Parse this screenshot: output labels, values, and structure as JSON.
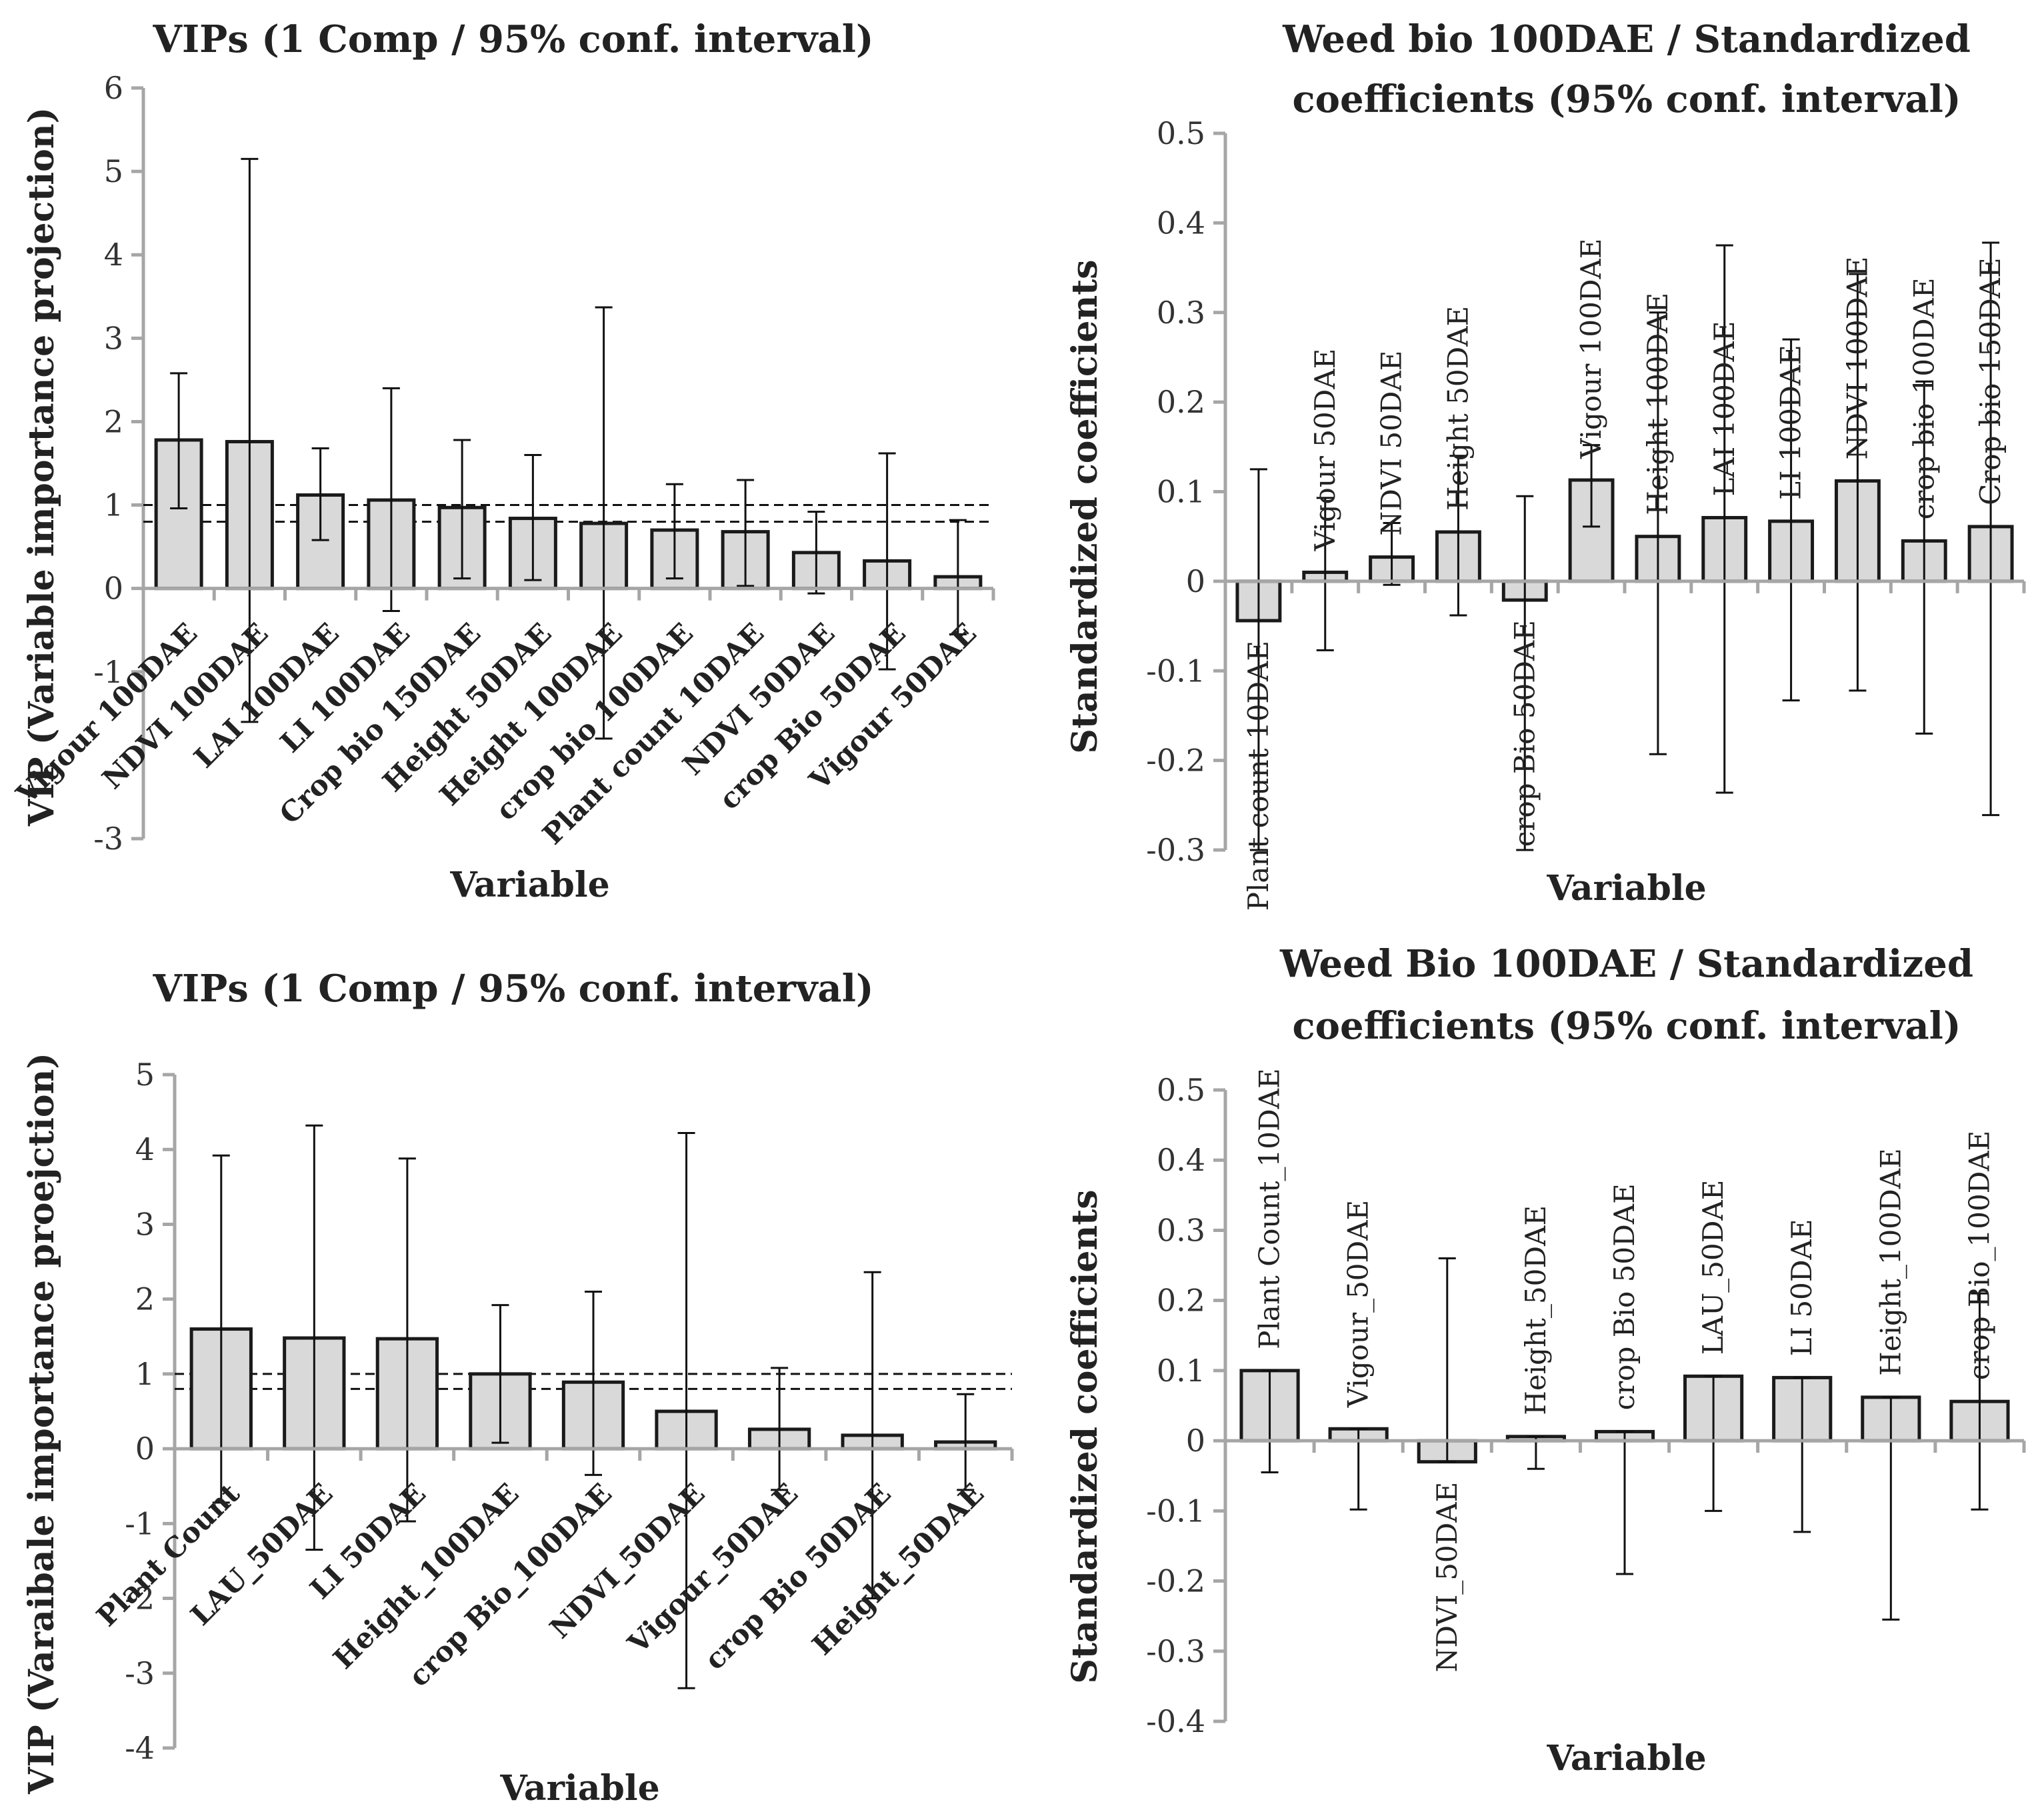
{
  "chart_data": [
    {
      "id": "top-left",
      "type": "bar",
      "title": "VIPs (1 Comp / 95% conf. interval)",
      "xlabel": "Variable",
      "ylabel": "VIP (Variable importance projection)",
      "ylim": [
        -3,
        6
      ],
      "yticks": [
        "-3",
        "-1",
        "0",
        "1",
        "2",
        "3",
        "4",
        "5",
        "6"
      ],
      "categories": [
        "Vigour 100DAE",
        "NDVI 100DAE",
        "LAI 100DAE",
        "LI 100DAE",
        "Crop bio 150DAE",
        "Height 50DAE",
        "Height 100DAE",
        "crop bio 100DAE",
        "Plant count 10DAE",
        "NDVI 50DAE",
        "crop Bio 50DAE",
        "Vigour 50DAE"
      ],
      "values": [
        1.78,
        1.76,
        1.12,
        1.06,
        0.97,
        0.84,
        0.78,
        0.7,
        0.68,
        0.43,
        0.33,
        0.14
      ],
      "err_low": [
        0.96,
        -1.6,
        0.58,
        -0.27,
        0.12,
        0.1,
        -1.8,
        0.12,
        0.03,
        -0.06,
        -0.97,
        -0.55
      ],
      "err_high": [
        2.58,
        5.15,
        1.68,
        2.4,
        1.78,
        1.6,
        3.37,
        1.25,
        1.3,
        0.92,
        1.62,
        0.82
      ],
      "ref_lines": [
        0.8,
        1.0
      ]
    },
    {
      "id": "top-right",
      "type": "bar",
      "title": "Weed bio 100DAE / Standardized coefficients (95% conf. interval)",
      "title_lines": [
        "Weed bio 100DAE / Standardized",
        "coefficients (95% conf. interval)"
      ],
      "xlabel": "Variable",
      "ylabel": "Standardized coefficients",
      "ylim": [
        -0.3,
        0.5
      ],
      "yticks": [
        "-0.3",
        "-0.2",
        "-0.1",
        "0",
        "0.1",
        "0.2",
        "0.3",
        "0.4",
        "0.5"
      ],
      "categories": [
        "Plant count 10DAE",
        "Vigour 50DAE",
        "NDVI 50DAE",
        "Height 50DAE",
        "crop Bio 50DAE",
        "Vigour 100DAE",
        "Height 100DAE",
        "LAI 100DAE",
        "LI 100DAE",
        "NDVI 100DAE",
        "crop bio 100DAE",
        "Crop bio 150DAE"
      ],
      "values": [
        -0.044,
        0.01,
        0.027,
        0.055,
        -0.021,
        0.113,
        0.05,
        0.071,
        0.067,
        0.112,
        0.045,
        0.061
      ],
      "err_low": [
        -0.3,
        -0.077,
        -0.004,
        -0.038,
        -0.3,
        0.061,
        -0.193,
        -0.236,
        -0.133,
        -0.122,
        -0.17,
        -0.261
      ],
      "err_high": [
        0.125,
        0.093,
        0.065,
        0.14,
        0.095,
        0.152,
        0.3,
        0.375,
        0.27,
        0.343,
        0.223,
        0.378
      ],
      "labels_above": [
        false,
        true,
        true,
        true,
        false,
        true,
        true,
        true,
        true,
        true,
        true,
        true
      ]
    },
    {
      "id": "bottom-left",
      "type": "bar",
      "title": "VIPs (1 Comp / 95% conf. interval)",
      "xlabel": "Variable",
      "ylabel": "VIP (Varaibale importance proejction)",
      "ylim": [
        -4,
        5
      ],
      "yticks": [
        "-4",
        "-3",
        "-2",
        "-1",
        "0",
        "1",
        "2",
        "3",
        "4",
        "5"
      ],
      "categories": [
        "Plant Count",
        "LAU_50DAE",
        "LI 50DAE",
        "Height_100DAE",
        "crop Bio_100DAE",
        "NDVI_50DAE",
        "Vigour_50DAE",
        "crop Bio 50DAE",
        "Height_50DAE"
      ],
      "values": [
        1.6,
        1.48,
        1.47,
        1.0,
        0.89,
        0.5,
        0.26,
        0.18,
        0.09
      ],
      "err_low": [
        -0.72,
        -1.35,
        -0.97,
        0.08,
        -0.35,
        -3.2,
        -0.55,
        -2.0,
        -0.55
      ],
      "err_high": [
        3.92,
        4.32,
        3.88,
        1.92,
        2.1,
        4.22,
        1.08,
        2.36,
        0.73
      ],
      "ref_lines": [
        0.8,
        1.0
      ]
    },
    {
      "id": "bottom-right",
      "type": "bar",
      "title": "Weed Bio 100DAE / Standardized coefficients (95% conf. interval)",
      "title_lines": [
        "Weed Bio 100DAE / Standardized",
        "coefficients (95% conf. interval)"
      ],
      "xlabel": "Variable",
      "ylabel": "Standardized coefficients",
      "ylim": [
        -0.4,
        0.5
      ],
      "yticks": [
        "-0.4",
        "-0.3",
        "-0.2",
        "-0.1",
        "0",
        "0.1",
        "0.2",
        "0.3",
        "0.4",
        "0.5"
      ],
      "categories": [
        "Plant Count_10DAE",
        "Vigour_50DAE",
        "NDVI_50DAE",
        "Height_50DAE",
        "crop Bio 50DAE",
        "LAU_50DAE",
        "LI 50DAE",
        "Height_100DAE",
        "crop Bio_100DAE"
      ],
      "values": [
        0.1,
        0.017,
        -0.03,
        0.006,
        0.013,
        0.092,
        0.09,
        0.062,
        0.056
      ],
      "err_low": [
        -0.045,
        -0.098,
        -0.03,
        -0.04,
        -0.19,
        -0.1,
        -0.13,
        -0.255,
        -0.098
      ],
      "err_high": [
        0.1,
        0.017,
        0.26,
        0.006,
        0.013,
        0.092,
        0.09,
        0.062,
        0.21
      ],
      "labels_above": [
        true,
        true,
        false,
        true,
        true,
        true,
        true,
        true,
        true
      ]
    }
  ]
}
